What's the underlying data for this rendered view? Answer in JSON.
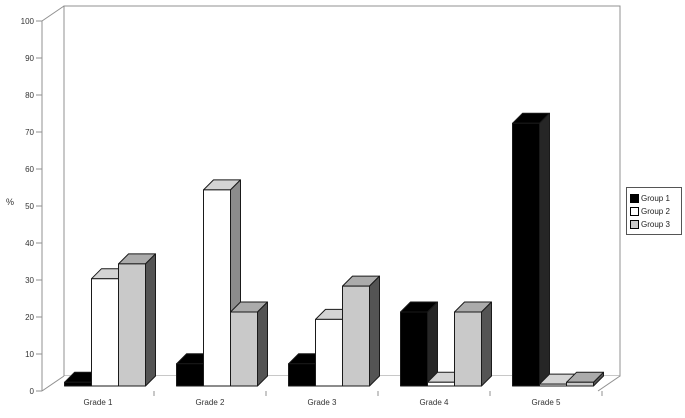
{
  "chart_data": {
    "type": "bar",
    "style": "3d-grouped",
    "title": "",
    "xlabel": "",
    "ylabel": "%",
    "ylim": [
      0,
      100
    ],
    "ytick_step": 10,
    "grid": false,
    "legend_position": "right-outside",
    "categories": [
      "Grade 1",
      "Grade 2",
      "Grade 3",
      "Grade 4",
      "Grade 5"
    ],
    "series": [
      {
        "name": "Group 1",
        "colors": {
          "face": "#000000",
          "top": "#000000",
          "side": "#262626"
        },
        "values": [
          1,
          6,
          6,
          20,
          71
        ]
      },
      {
        "name": "Group 2",
        "colors": {
          "face": "#ffffff",
          "top": "#d4d4d4",
          "side": "#8c8c8c"
        },
        "values": [
          29,
          53,
          18,
          1,
          0.5
        ]
      },
      {
        "name": "Group 3",
        "colors": {
          "face": "#c9c9c9",
          "top": "#ababab",
          "side": "#545454"
        },
        "values": [
          33,
          20,
          27,
          20,
          1
        ]
      }
    ],
    "frame_color": "#909090",
    "text_color": "#333333",
    "bar_outline_color": "#1a1a1a"
  }
}
